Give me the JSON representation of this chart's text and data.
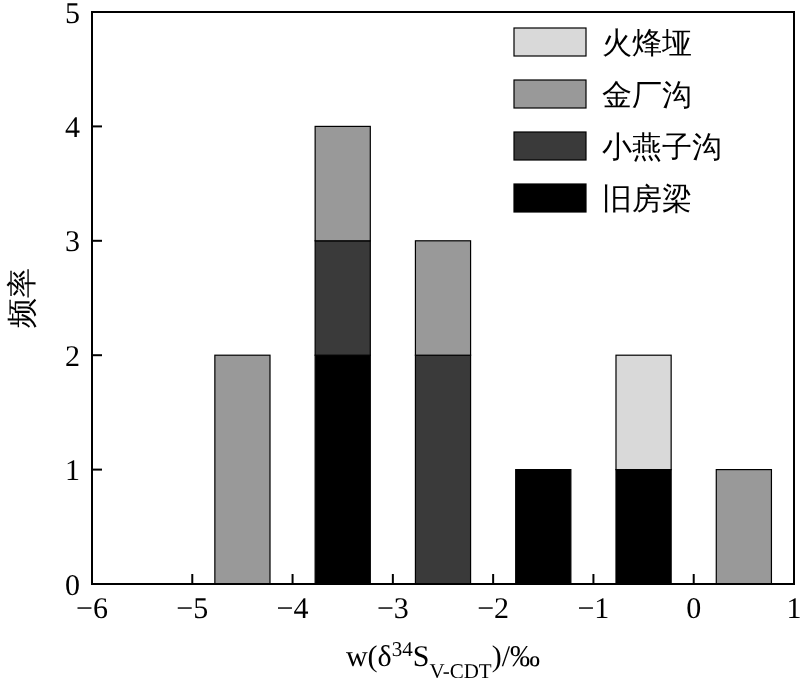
{
  "chart_data": {
    "type": "bar",
    "stacked": true,
    "xlabel": "w(δ$^{34}$S$_{V-CDT}$)/‰",
    "ylabel": "频率",
    "x": [
      -4.5,
      -3.5,
      -2.5,
      -1.5,
      -0.5,
      0.5
    ],
    "series": [
      {
        "name": "旧房梁",
        "color": "#000000",
        "values": [
          0,
          2,
          0,
          1,
          1,
          0
        ]
      },
      {
        "name": "小燕子沟",
        "color": "#3a3a3a",
        "values": [
          0,
          1,
          2,
          0,
          0,
          0
        ]
      },
      {
        "name": "金厂沟",
        "color": "#999999",
        "values": [
          2,
          1,
          1,
          0,
          0,
          1
        ]
      },
      {
        "name": "火烽垭",
        "color": "#d9d9d9",
        "values": [
          0,
          0,
          0,
          0,
          1,
          0
        ]
      }
    ],
    "xlim": [
      -6,
      1
    ],
    "xticks": [
      -6,
      -5,
      -4,
      -3,
      -2,
      -1,
      0,
      1
    ],
    "ylim": [
      0,
      5
    ],
    "yticks": [
      0,
      1,
      2,
      3,
      4,
      5
    ],
    "legend": "top right"
  }
}
